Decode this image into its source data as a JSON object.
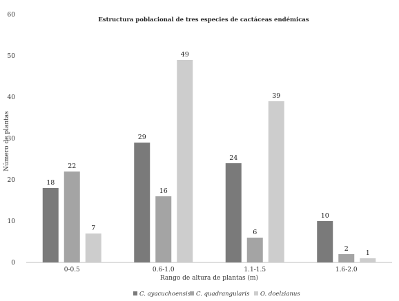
{
  "chart_data": {
    "type": "bar",
    "title": "Estructura poblacional de tres especies de  cactáceas endémicas",
    "xlabel": "Rango de altura  de plantas (m)",
    "ylabel": "Número de plantas",
    "ylim": [
      0,
      60
    ],
    "yticks": [
      0,
      10,
      20,
      30,
      40,
      50,
      60
    ],
    "categories": [
      "0-0.5",
      "0.6-1.0",
      "1.1-1.5",
      "1.6-2.0"
    ],
    "series": [
      {
        "name": "C. ayacuchoensis",
        "color": "#7a7a7a",
        "values": [
          18,
          29,
          24,
          10
        ]
      },
      {
        "name": "C. quadrangularis",
        "color": "#a4a4a4",
        "values": [
          22,
          16,
          6,
          2
        ]
      },
      {
        "name": "O. doelzianus",
        "color": "#cdcdcd",
        "values": [
          7,
          49,
          39,
          1
        ]
      }
    ],
    "legend_position": "bottom",
    "grid": false,
    "data_labels": true
  }
}
